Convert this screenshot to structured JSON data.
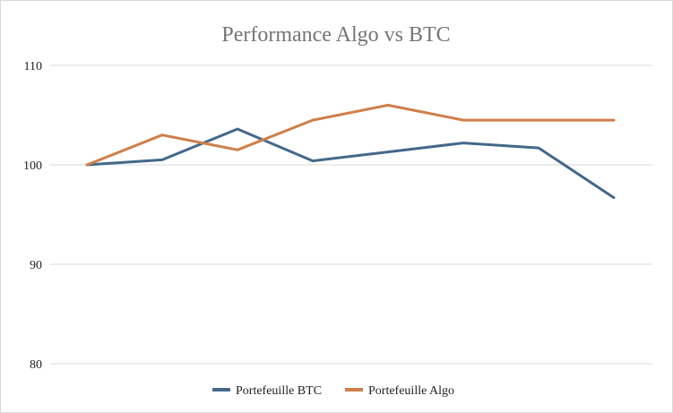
{
  "chart_data": {
    "type": "line",
    "title": "Performance Algo vs BTC",
    "xlabel": "",
    "ylabel": "",
    "ylim": [
      80,
      110
    ],
    "yticks": [
      80,
      90,
      100,
      110
    ],
    "x": [
      1,
      2,
      3,
      4,
      5,
      6,
      7,
      8
    ],
    "series": [
      {
        "name": "Portefeuille BTC",
        "color": "#44688a",
        "values": [
          100.0,
          100.5,
          103.6,
          100.4,
          101.3,
          102.2,
          101.7,
          96.7
        ]
      },
      {
        "name": "Portefeuille Algo",
        "color": "#d07f4a",
        "values": [
          100.0,
          103.0,
          101.5,
          104.5,
          106.0,
          104.5,
          104.5,
          104.5
        ]
      }
    ],
    "grid": true,
    "legend": "bottom"
  }
}
